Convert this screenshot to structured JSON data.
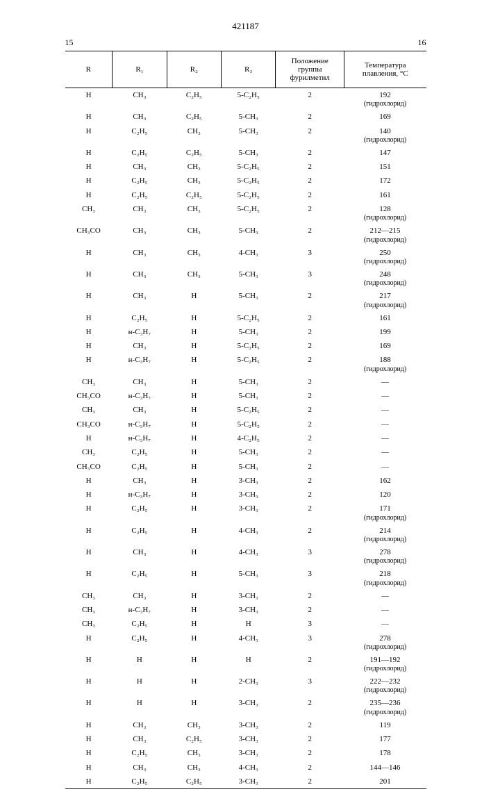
{
  "doc_number": "421187",
  "page_left": "15",
  "page_right": "16",
  "headers": {
    "r": "R",
    "r1": "R₁",
    "r2": "R₂",
    "r3": "R₃",
    "pos": "Положение группы фурилметил",
    "temp": "Температура плавления, °C"
  },
  "rows": [
    {
      "r": "H",
      "r1": "CH₃",
      "r2": "C₂H₅",
      "r3": "5-C₂H₅",
      "pos": "2",
      "t": "192",
      "note": "(гидрохлорид)"
    },
    {
      "r": "H",
      "r1": "CH₃",
      "r2": "C₂H₅",
      "r3": "5-CH₃",
      "pos": "2",
      "t": "169",
      "note": ""
    },
    {
      "r": "H",
      "r1": "C₂H₅",
      "r2": "CH₃",
      "r3": "5-CH₃",
      "pos": "2",
      "t": "140",
      "note": "(гидрохлорид)"
    },
    {
      "r": "H",
      "r1": "C₂H₅",
      "r2": "C₂H₅",
      "r3": "5-CH₃",
      "pos": "2",
      "t": "147",
      "note": ""
    },
    {
      "r": "H",
      "r1": "CH₃",
      "r2": "CH₃",
      "r3": "5-C₂H₅",
      "pos": "2",
      "t": "151",
      "note": ""
    },
    {
      "r": "H",
      "r1": "C₂H₅",
      "r2": "CH₃",
      "r3": "5-C₂H₅",
      "pos": "2",
      "t": "172",
      "note": ""
    },
    {
      "r": "H",
      "r1": "C₂H₅",
      "r2": "C₂H₅",
      "r3": "5-C₂H₅",
      "pos": "2",
      "t": "161",
      "note": ""
    },
    {
      "r": "CH₃",
      "r1": "CH₃",
      "r2": "CH₃",
      "r3": "5-C₂H₅",
      "pos": "2",
      "t": "128",
      "note": "(гидрохлорид)"
    },
    {
      "r": "CH₃CO",
      "r1": "CH₃",
      "r2": "CH₃",
      "r3": "5-CH₃",
      "pos": "2",
      "t": "212—215",
      "note": "(гидрохлорид)"
    },
    {
      "r": "H",
      "r1": "CH₃",
      "r2": "CH₃",
      "r3": "4-CH₃",
      "pos": "3",
      "t": "250",
      "note": "(гидрохлорид)"
    },
    {
      "r": "H",
      "r1": "CH₃",
      "r2": "CH₃",
      "r3": "5-CH₃",
      "pos": "3",
      "t": "248",
      "note": "(гидрохлорид)"
    },
    {
      "r": "H",
      "r1": "CH₃",
      "r2": "H",
      "r3": "5-CH₃",
      "pos": "2",
      "t": "217",
      "note": "(гидрохлорид)"
    },
    {
      "r": "H",
      "r1": "C₂H₅",
      "r2": "H",
      "r3": "5-C₂H₅",
      "pos": "2",
      "t": "161",
      "note": ""
    },
    {
      "r": "H",
      "r1": "н-C₃H₇",
      "r2": "H",
      "r3": "5-CH₃",
      "pos": "2",
      "t": "199",
      "note": ""
    },
    {
      "r": "H",
      "r1": "CH₃",
      "r2": "H",
      "r3": "5-C₂H₅",
      "pos": "2",
      "t": "169",
      "note": ""
    },
    {
      "r": "H",
      "r1": "н-C₃H₇",
      "r2": "H",
      "r3": "5-C₂H₅",
      "pos": "2",
      "t": "188",
      "note": "(гидрохлорид)"
    },
    {
      "r": "CH₃",
      "r1": "CH₃",
      "r2": "H",
      "r3": "5-CH₃",
      "pos": "2",
      "t": "—",
      "note": ""
    },
    {
      "r": "CH₃CO",
      "r1": "н-C₃H₇",
      "r2": "H",
      "r3": "5-CH₃",
      "pos": "2",
      "t": "—",
      "note": ""
    },
    {
      "r": "CH₃",
      "r1": "CH₃",
      "r2": "H",
      "r3": "5-C₂H₅",
      "pos": "2",
      "t": "—",
      "note": ""
    },
    {
      "r": "CH₃CO",
      "r1": "н-C₃H₇",
      "r2": "H",
      "r3": "5-C₂H₅",
      "pos": "2",
      "t": "—",
      "note": ""
    },
    {
      "r": "H",
      "r1": "н-C₃H₇",
      "r2": "H",
      "r3": "4-C₂H₅",
      "pos": "2",
      "t": "—",
      "note": ""
    },
    {
      "r": "CH₃",
      "r1": "C₂H₅",
      "r2": "H",
      "r3": "5-CH₃",
      "pos": "2",
      "t": "—",
      "note": ""
    },
    {
      "r": "CH₃CO",
      "r1": "C₂H₅",
      "r2": "H",
      "r3": "5-CH₃",
      "pos": "2",
      "t": "—",
      "note": ""
    },
    {
      "r": "H",
      "r1": "CH₃",
      "r2": "H",
      "r3": "3-CH₃",
      "pos": "2",
      "t": "162",
      "note": ""
    },
    {
      "r": "H",
      "r1": "н-C₃H₇",
      "r2": "H",
      "r3": "3-CH₃",
      "pos": "2",
      "t": "120",
      "note": ""
    },
    {
      "r": "H",
      "r1": "C₂H₅",
      "r2": "H",
      "r3": "3-CH₃",
      "pos": "2",
      "t": "171",
      "note": "(гидрохлорид)"
    },
    {
      "r": "H",
      "r1": "C₂H₅",
      "r2": "H",
      "r3": "4-CH₃",
      "pos": "2",
      "t": "214",
      "note": "(гидрохлорид)"
    },
    {
      "r": "H",
      "r1": "CH₃",
      "r2": "H",
      "r3": "4-CH₃",
      "pos": "3",
      "t": "278",
      "note": "(гидрохлорид)"
    },
    {
      "r": "H",
      "r1": "C₂H₅",
      "r2": "H",
      "r3": "5-CH₃",
      "pos": "3",
      "t": "218",
      "note": "(гидрохлорид)"
    },
    {
      "r": "CH₃",
      "r1": "CH₃",
      "r2": "H",
      "r3": "3-CH₃",
      "pos": "2",
      "t": "—",
      "note": ""
    },
    {
      "r": "CH₃",
      "r1": "н-C₃H₇",
      "r2": "H",
      "r3": "3-CH₃",
      "pos": "2",
      "t": "—",
      "note": ""
    },
    {
      "r": "CH₃",
      "r1": "C₂H₅",
      "r2": "H",
      "r3": "H",
      "pos": "3",
      "t": "—",
      "note": ""
    },
    {
      "r": "H",
      "r1": "C₂H₅",
      "r2": "H",
      "r3": "4-CH₃",
      "pos": "3",
      "t": "278",
      "note": "(гидрохлорид)"
    },
    {
      "r": "H",
      "r1": "H",
      "r2": "H",
      "r3": "H",
      "pos": "2",
      "t": "191—192",
      "note": "(гидрохлорид)"
    },
    {
      "r": "H",
      "r1": "H",
      "r2": "H",
      "r3": "2-CH₃",
      "pos": "3",
      "t": "222—232",
      "note": "(гидрохлорид)"
    },
    {
      "r": "H",
      "r1": "H",
      "r2": "H",
      "r3": "3-CH₃",
      "pos": "2",
      "t": "235—236",
      "note": "(гидрохлорид)"
    },
    {
      "r": "H",
      "r1": "CH₃",
      "r2": "CH₃",
      "r3": "3-CH₃",
      "pos": "2",
      "t": "119",
      "note": ""
    },
    {
      "r": "H",
      "r1": "CH₃",
      "r2": "C₂H₅",
      "r3": "3-CH₃",
      "pos": "2",
      "t": "177",
      "note": ""
    },
    {
      "r": "H",
      "r1": "C₂H₅",
      "r2": "CH₃",
      "r3": "3-CH₃",
      "pos": "2",
      "t": "178",
      "note": ""
    },
    {
      "r": "H",
      "r1": "CH₃",
      "r2": "CH₃",
      "r3": "4-CH₃",
      "pos": "2",
      "t": "144—146",
      "note": ""
    },
    {
      "r": "H",
      "r1": "C₂H₅",
      "r2": "C₂H₅",
      "r3": "3-CH₃",
      "pos": "2",
      "t": "201",
      "note": ""
    }
  ]
}
